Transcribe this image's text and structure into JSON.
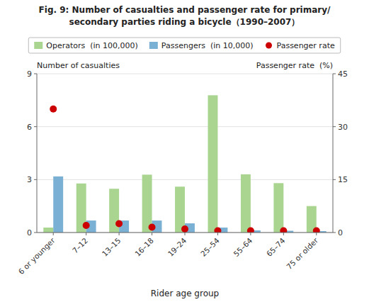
{
  "chart_data": {
    "type": "bar",
    "title": "Fig. 9: Number of casualties and passenger rate for primary/",
    "subtitle": "secondary parties riding a bicycle（1990–2007）",
    "categories": [
      "6 or younger",
      "7–12",
      "13–15",
      "16–18",
      "19–24",
      "25–54",
      "55–64",
      "65–74",
      "75 or older"
    ],
    "series": [
      {
        "name": "Operators  (in 100,000)",
        "color": "#aad591",
        "values": [
          0.28,
          2.78,
          2.48,
          3.28,
          2.6,
          7.78,
          3.3,
          2.8,
          1.5
        ]
      },
      {
        "name": "Passengers  (in 10,000)",
        "color": "#7ab0d4",
        "values": [
          3.18,
          0.68,
          0.68,
          0.68,
          0.52,
          0.28,
          0.12,
          0.1,
          0.08
        ]
      },
      {
        "name": "Passenger rate",
        "color": "#cc0000",
        "type": "scatter",
        "axis": "y2",
        "marker": "circle",
        "values": [
          35.0,
          2.0,
          2.5,
          1.5,
          1.0,
          0.5,
          0.5,
          0.5,
          0.5
        ]
      }
    ],
    "ylabel": "Number of casualties",
    "y2label": "Passenger rate  (%)",
    "xlabel": "Rider age group",
    "ylim": [
      0,
      9
    ],
    "yticks": [
      0,
      3,
      6,
      9
    ],
    "y2lim": [
      0,
      45
    ],
    "y2ticks": [
      0,
      15,
      30,
      45
    ],
    "grid": true,
    "legend": "top"
  }
}
